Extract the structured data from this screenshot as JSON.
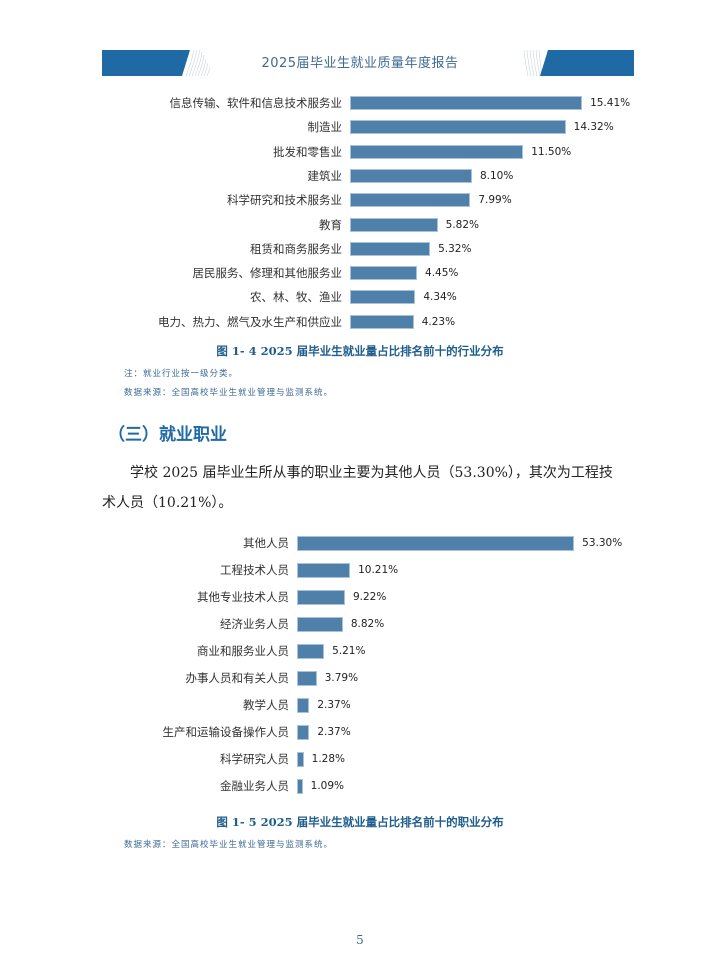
{
  "header": {
    "title": "2025届毕业生就业质量年度报告",
    "accent_color": "#1f6aa5"
  },
  "figure_1_4": {
    "caption": "图 1- 4  2025 届毕业生就业量占比排名前十的行业分布",
    "note": "注：就业行业按一级分类。",
    "source": "数据来源：全国高校毕业生就业管理与监测系统。"
  },
  "section": {
    "title": "（三）就业职业",
    "paragraph_line1": "学校 2025 届毕业生所从事的职业主要为其他人员（53.30%），其次为工程技",
    "paragraph_line2": "术人员（10.21%）。"
  },
  "figure_1_5": {
    "caption": "图 1- 5  2025 届毕业生就业量占比排名前十的职业分布",
    "source": "数据来源：全国高校毕业生就业管理与监测系统。"
  },
  "page_number": "5",
  "chart_data": [
    {
      "type": "bar",
      "orientation": "horizontal",
      "title": "图 1- 4  2025 届毕业生就业量占比排名前十的行业分布",
      "categories": [
        "信息传输、软件和信息技术服务业",
        "制造业",
        "批发和零售业",
        "建筑业",
        "科学研究和技术服务业",
        "教育",
        "租赁和商务服务业",
        "居民服务、修理和其他服务业",
        "农、林、牧、渔业",
        "电力、热力、燃气及水生产和供应业"
      ],
      "values": [
        15.41,
        14.32,
        11.5,
        8.1,
        7.99,
        5.82,
        5.32,
        4.45,
        4.34,
        4.23
      ],
      "labels": [
        "15.41%",
        "14.32%",
        "11.50%",
        "8.10%",
        "7.99%",
        "5.82%",
        "5.32%",
        "4.45%",
        "4.34%",
        "4.23%"
      ],
      "xlabel": "",
      "ylabel": "",
      "grid": false,
      "legend": null,
      "color": "#4e80aa"
    },
    {
      "type": "bar",
      "orientation": "horizontal",
      "title": "图 1- 5  2025 届毕业生就业量占比排名前十的职业分布",
      "categories": [
        "其他人员",
        "工程技术人员",
        "其他专业技术人员",
        "经济业务人员",
        "商业和服务业人员",
        "办事人员和有关人员",
        "教学人员",
        "生产和运输设备操作人员",
        "科学研究人员",
        "金融业务人员"
      ],
      "values": [
        53.3,
        10.21,
        9.22,
        8.82,
        5.21,
        3.79,
        2.37,
        2.37,
        1.28,
        1.09
      ],
      "labels": [
        "53.30%",
        "10.21%",
        "9.22%",
        "8.82%",
        "5.21%",
        "3.79%",
        "2.37%",
        "2.37%",
        "1.28%",
        "1.09%"
      ],
      "xlabel": "",
      "ylabel": "",
      "grid": false,
      "legend": null,
      "color": "#4e80aa"
    }
  ]
}
